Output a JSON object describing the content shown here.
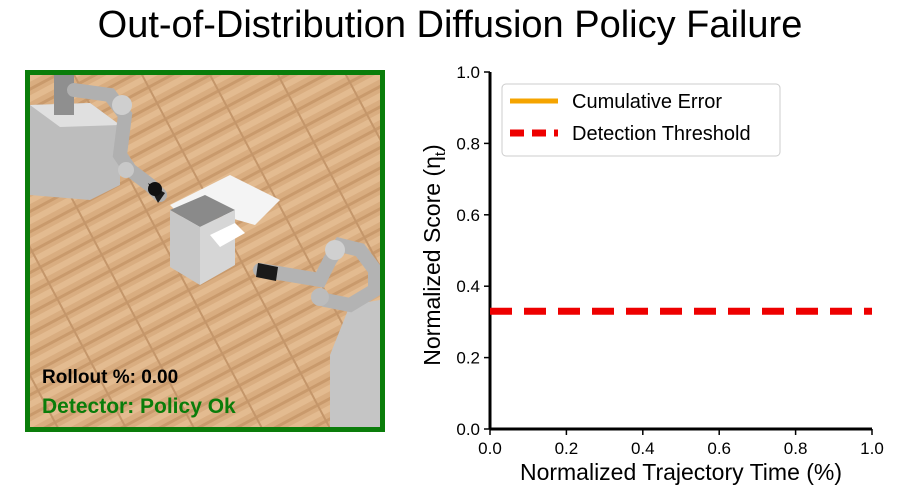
{
  "title": "Out-of-Distribution Diffusion Policy Failure",
  "sim_panel": {
    "rollout_text": "Rollout %: 0.00",
    "detector_text": "Detector: Policy Ok",
    "border_color": "#0a7d0a",
    "detector_color": "#0a7d0a"
  },
  "chart_data": {
    "type": "line",
    "xlabel": "Normalized Trajectory Time (%)",
    "ylabel": "Normalized Score (η",
    "ylabel_sub": "t",
    "ylabel_close": ")",
    "xlim": [
      0,
      1
    ],
    "ylim": [
      0,
      1
    ],
    "x_ticks": [
      "0.0",
      "0.2",
      "0.4",
      "0.6",
      "0.8",
      "1.0"
    ],
    "y_ticks": [
      "0.0",
      "0.2",
      "0.4",
      "0.6",
      "0.8",
      "1.0"
    ],
    "grid": false,
    "legend_position": "top-left",
    "series": [
      {
        "name": "Cumulative Error",
        "color": "#f5a400",
        "style": "solid",
        "x": [],
        "y": []
      },
      {
        "name": "Detection Threshold",
        "color": "#ee0000",
        "style": "dashed",
        "x": [
          0,
          1
        ],
        "y": [
          0.33,
          0.33
        ]
      }
    ]
  }
}
